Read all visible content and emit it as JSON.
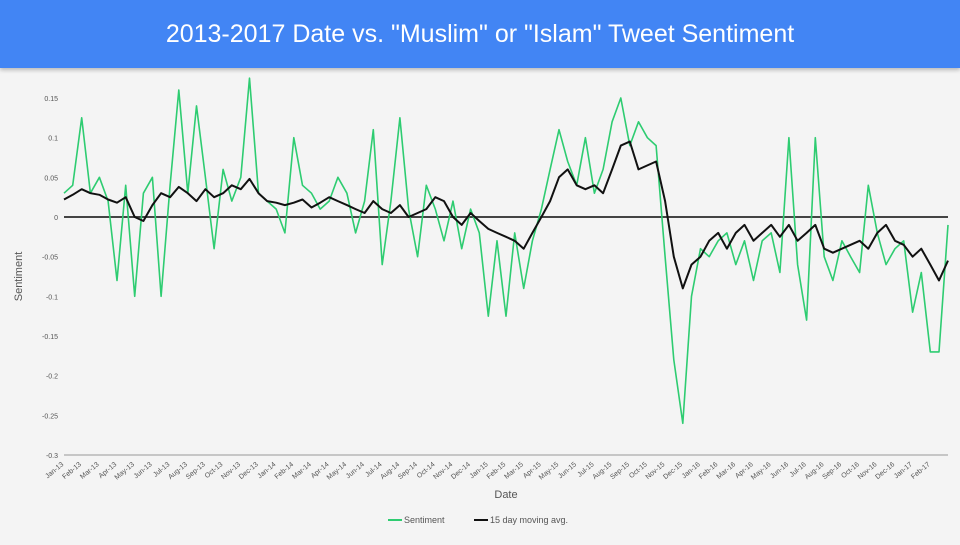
{
  "slide": {
    "title": "2013-2017 Date vs. \"Muslim\" or \"Islam\" Tweet Sentiment"
  },
  "chart_data": {
    "type": "line",
    "title": "",
    "xlabel": "Date",
    "ylabel": "Sentiment",
    "ylim": [
      -0.3,
      0.15
    ],
    "yticks": [
      -0.3,
      -0.25,
      -0.2,
      -0.15,
      -0.1,
      -0.05,
      0,
      0.05,
      0.1,
      0.15
    ],
    "ytick_labels": [
      "-0.3",
      "-0.25",
      "-0.2",
      "-0.15",
      "-0.1",
      "-0.05",
      "0",
      "0.05",
      "0.1",
      "0.15"
    ],
    "xlim": [
      "2013-01",
      "2017-03"
    ],
    "x_ticks": [
      "Jan-13",
      "Feb-13",
      "Mar-13",
      "Apr-13",
      "May-13",
      "Jun-13",
      "Jul-13",
      "Aug-13",
      "Sep-13",
      "Oct-13",
      "Nov-13",
      "Dec-13",
      "Jan-14",
      "Feb-14",
      "Mar-14",
      "Apr-14",
      "May-14",
      "Jun-14",
      "Jul-14",
      "Aug-14",
      "Sep-14",
      "Oct-14",
      "Nov-14",
      "Dec-14",
      "Jan-15",
      "Feb-15",
      "Mar-15",
      "Apr-15",
      "May-15",
      "Jun-15",
      "Jul-15",
      "Aug-15",
      "Sep-15",
      "Oct-15",
      "Nov-15",
      "Dec-15",
      "Jan-16",
      "Feb-16",
      "Mar-16",
      "Apr-16",
      "May-16",
      "Jun-16",
      "Jul-16",
      "Aug-16",
      "Sep-16",
      "Oct-16",
      "Nov-16",
      "Dec-16",
      "Jan-17",
      "Feb-17"
    ],
    "grid": false,
    "legend_position": "bottom",
    "series": [
      {
        "name": "Sentiment",
        "color": "#2ecc71",
        "x": [
          "2013-01-01",
          "2013-01-16",
          "2013-02-01",
          "2013-02-16",
          "2013-03-01",
          "2013-03-16",
          "2013-04-01",
          "2013-04-16",
          "2013-05-01",
          "2013-05-16",
          "2013-06-01",
          "2013-06-16",
          "2013-07-01",
          "2013-07-16",
          "2013-08-01",
          "2013-08-16",
          "2013-09-01",
          "2013-09-16",
          "2013-10-01",
          "2013-10-16",
          "2013-11-01",
          "2013-11-16",
          "2013-12-01",
          "2013-12-16",
          "2014-01-01",
          "2014-01-16",
          "2014-02-01",
          "2014-02-16",
          "2014-03-01",
          "2014-03-16",
          "2014-04-01",
          "2014-04-16",
          "2014-05-01",
          "2014-05-16",
          "2014-06-01",
          "2014-06-16",
          "2014-07-01",
          "2014-07-16",
          "2014-08-01",
          "2014-08-16",
          "2014-09-01",
          "2014-09-16",
          "2014-10-01",
          "2014-10-16",
          "2014-11-01",
          "2014-11-16",
          "2014-12-01",
          "2014-12-16",
          "2015-01-01",
          "2015-01-16",
          "2015-02-01",
          "2015-02-16",
          "2015-03-01",
          "2015-03-16",
          "2015-04-01",
          "2015-04-16",
          "2015-05-01",
          "2015-05-16",
          "2015-06-01",
          "2015-06-16",
          "2015-07-01",
          "2015-07-16",
          "2015-08-01",
          "2015-08-16",
          "2015-09-01",
          "2015-09-16",
          "2015-10-01",
          "2015-10-16",
          "2015-11-01",
          "2015-11-16",
          "2015-12-01",
          "2015-12-16",
          "2016-01-01",
          "2016-01-16",
          "2016-02-01",
          "2016-02-16",
          "2016-03-01",
          "2016-03-16",
          "2016-04-01",
          "2016-04-16",
          "2016-05-01",
          "2016-05-16",
          "2016-06-01",
          "2016-06-16",
          "2016-07-01",
          "2016-07-16",
          "2016-08-01",
          "2016-08-16",
          "2016-09-01",
          "2016-09-16",
          "2016-10-01",
          "2016-10-16",
          "2016-11-01",
          "2016-11-16",
          "2016-12-01",
          "2016-12-16",
          "2017-01-01",
          "2017-01-16",
          "2017-02-01",
          "2017-02-16",
          "2017-03-01"
        ],
        "values": [
          0.03,
          0.04,
          0.125,
          0.03,
          0.05,
          0.02,
          -0.08,
          0.04,
          -0.1,
          0.03,
          0.05,
          -0.1,
          0.04,
          0.16,
          0.03,
          0.14,
          0.05,
          -0.04,
          0.06,
          0.02,
          0.05,
          0.175,
          0.03,
          0.02,
          0.01,
          -0.02,
          0.1,
          0.04,
          0.03,
          0.01,
          0.02,
          0.05,
          0.03,
          -0.02,
          0.02,
          0.11,
          -0.06,
          0.02,
          0.125,
          0.01,
          -0.05,
          0.04,
          0.01,
          -0.03,
          0.02,
          -0.04,
          0.01,
          -0.02,
          -0.125,
          -0.03,
          -0.125,
          -0.02,
          -0.09,
          -0.03,
          0.01,
          0.06,
          0.11,
          0.07,
          0.04,
          0.1,
          0.03,
          0.06,
          0.12,
          0.15,
          0.09,
          0.12,
          0.1,
          0.09,
          -0.05,
          -0.18,
          -0.26,
          -0.1,
          -0.04,
          -0.05,
          -0.03,
          -0.02,
          -0.06,
          -0.03,
          -0.08,
          -0.03,
          -0.02,
          -0.07,
          0.1,
          -0.06,
          -0.13,
          0.1,
          -0.05,
          -0.08,
          -0.03,
          -0.05,
          -0.07,
          0.04,
          -0.02,
          -0.06,
          -0.04,
          -0.03,
          -0.12,
          -0.07,
          -0.17,
          -0.17,
          -0.01
        ]
      },
      {
        "name": "15 day moving avg.",
        "color": "#111111",
        "x": [
          "2013-01-01",
          "2013-01-16",
          "2013-02-01",
          "2013-02-16",
          "2013-03-01",
          "2013-03-16",
          "2013-04-01",
          "2013-04-16",
          "2013-05-01",
          "2013-05-16",
          "2013-06-01",
          "2013-06-16",
          "2013-07-01",
          "2013-07-16",
          "2013-08-01",
          "2013-08-16",
          "2013-09-01",
          "2013-09-16",
          "2013-10-01",
          "2013-10-16",
          "2013-11-01",
          "2013-11-16",
          "2013-12-01",
          "2013-12-16",
          "2014-01-01",
          "2014-01-16",
          "2014-02-01",
          "2014-02-16",
          "2014-03-01",
          "2014-03-16",
          "2014-04-01",
          "2014-04-16",
          "2014-05-01",
          "2014-05-16",
          "2014-06-01",
          "2014-06-16",
          "2014-07-01",
          "2014-07-16",
          "2014-08-01",
          "2014-08-16",
          "2014-09-01",
          "2014-09-16",
          "2014-10-01",
          "2014-10-16",
          "2014-11-01",
          "2014-11-16",
          "2014-12-01",
          "2014-12-16",
          "2015-01-01",
          "2015-01-16",
          "2015-02-01",
          "2015-02-16",
          "2015-03-01",
          "2015-03-16",
          "2015-04-01",
          "2015-04-16",
          "2015-05-01",
          "2015-05-16",
          "2015-06-01",
          "2015-06-16",
          "2015-07-01",
          "2015-07-16",
          "2015-08-01",
          "2015-08-16",
          "2015-09-01",
          "2015-09-16",
          "2015-10-01",
          "2015-10-16",
          "2015-11-01",
          "2015-11-16",
          "2015-12-01",
          "2015-12-16",
          "2016-01-01",
          "2016-01-16",
          "2016-02-01",
          "2016-02-16",
          "2016-03-01",
          "2016-03-16",
          "2016-04-01",
          "2016-04-16",
          "2016-05-01",
          "2016-05-16",
          "2016-06-01",
          "2016-06-16",
          "2016-07-01",
          "2016-07-16",
          "2016-08-01",
          "2016-08-16",
          "2016-09-01",
          "2016-09-16",
          "2016-10-01",
          "2016-10-16",
          "2016-11-01",
          "2016-11-16",
          "2016-12-01",
          "2016-12-16",
          "2017-01-01",
          "2017-01-16",
          "2017-02-01",
          "2017-02-16",
          "2017-03-01"
        ],
        "values": [
          0.022,
          0.028,
          0.035,
          0.03,
          0.028,
          0.022,
          0.018,
          0.025,
          0.0,
          -0.005,
          0.015,
          0.03,
          0.025,
          0.038,
          0.03,
          0.02,
          0.035,
          0.025,
          0.03,
          0.04,
          0.035,
          0.048,
          0.03,
          0.02,
          0.018,
          0.015,
          0.018,
          0.022,
          0.012,
          0.018,
          0.025,
          0.02,
          0.015,
          0.01,
          0.005,
          0.02,
          0.01,
          0.005,
          0.015,
          0.0,
          0.005,
          0.01,
          0.025,
          0.02,
          0.0,
          -0.01,
          0.005,
          -0.005,
          -0.015,
          -0.02,
          -0.025,
          -0.03,
          -0.04,
          -0.02,
          0.0,
          0.02,
          0.05,
          0.06,
          0.04,
          0.035,
          0.04,
          0.03,
          0.06,
          0.09,
          0.095,
          0.06,
          0.065,
          0.07,
          0.02,
          -0.05,
          -0.09,
          -0.06,
          -0.05,
          -0.03,
          -0.02,
          -0.04,
          -0.02,
          -0.01,
          -0.03,
          -0.02,
          -0.01,
          -0.025,
          -0.01,
          -0.03,
          -0.02,
          -0.01,
          -0.04,
          -0.045,
          -0.04,
          -0.035,
          -0.03,
          -0.04,
          -0.02,
          -0.01,
          -0.03,
          -0.035,
          -0.05,
          -0.04,
          -0.06,
          -0.08,
          -0.055
        ]
      }
    ]
  }
}
